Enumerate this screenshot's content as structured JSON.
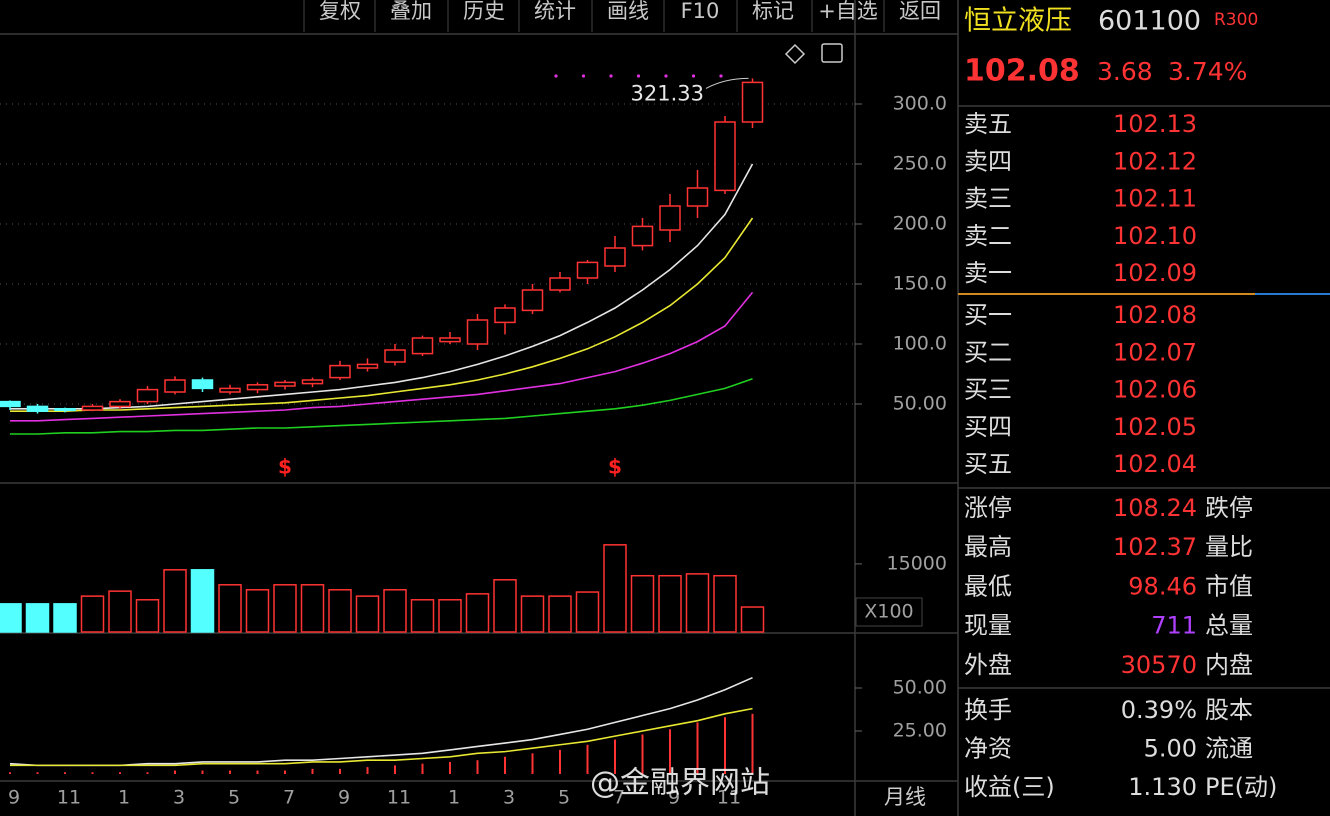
{
  "toolbar": [
    "复权",
    "叠加",
    "历史",
    "统计",
    "画线",
    "F10",
    "标记",
    "+自选",
    "返回"
  ],
  "chart_data": [
    {
      "type": "candlestick",
      "period": "月线",
      "up_color": "#ff3333",
      "down_color": "#54ffff",
      "categories": [
        "9",
        null,
        "11",
        null,
        "1",
        null,
        "3",
        null,
        "5",
        null,
        "7",
        null,
        "9",
        null,
        "11",
        null,
        "1",
        null,
        "3",
        null,
        "5",
        null,
        "7",
        null,
        "9",
        null,
        "11",
        null
      ],
      "open": [
        52,
        48,
        46,
        45,
        48,
        52,
        60,
        70,
        60,
        62,
        65,
        67,
        72,
        80,
        85,
        92,
        102,
        100,
        118,
        128,
        145,
        155,
        165,
        182,
        195,
        215,
        228,
        285
      ],
      "high": [
        53,
        50,
        47,
        50,
        54,
        65,
        73,
        72,
        66,
        68,
        70,
        72,
        86,
        88,
        100,
        107,
        110,
        125,
        133,
        150,
        160,
        170,
        190,
        205,
        225,
        245,
        290,
        321.33
      ],
      "low": [
        45,
        42,
        43,
        44,
        46,
        50,
        58,
        60,
        58,
        59,
        62,
        64,
        70,
        77,
        82,
        90,
        100,
        95,
        108,
        125,
        143,
        150,
        160,
        178,
        185,
        205,
        225,
        280
      ],
      "close": [
        48,
        44,
        45,
        48,
        52,
        62,
        70,
        63,
        63,
        66,
        68,
        70,
        82,
        83,
        95,
        105,
        105,
        120,
        130,
        145,
        155,
        168,
        180,
        198,
        215,
        230,
        285,
        318
      ],
      "series": [
        {
          "color": "#e6e6e6",
          "values": [
            46,
            46,
            46,
            46,
            47,
            48,
            50,
            52,
            54,
            56,
            58,
            60,
            62,
            65,
            68,
            72,
            77,
            83,
            90,
            98,
            107,
            118,
            130,
            145,
            162,
            182,
            208,
            250
          ]
        },
        {
          "color": "#e8e832",
          "values": [
            44,
            44,
            44,
            45,
            45,
            46,
            47,
            48,
            49,
            50,
            51,
            53,
            55,
            57,
            60,
            63,
            66,
            70,
            75,
            81,
            88,
            96,
            106,
            118,
            132,
            150,
            172,
            205
          ]
        },
        {
          "color": "#e030e0",
          "values": [
            36,
            36,
            37,
            38,
            39,
            40,
            41,
            42,
            43,
            44,
            45,
            47,
            48,
            50,
            52,
            54,
            56,
            58,
            61,
            64,
            67,
            72,
            77,
            84,
            92,
            102,
            115,
            143
          ]
        },
        {
          "color": "#20d020",
          "values": [
            25,
            25,
            26,
            26,
            27,
            27,
            28,
            28,
            29,
            30,
            30,
            31,
            32,
            33,
            34,
            35,
            36,
            37,
            38,
            40,
            42,
            44,
            46,
            49,
            53,
            58,
            63,
            71
          ]
        }
      ],
      "signals": [
        null,
        null,
        null,
        null,
        null,
        null,
        null,
        null,
        null,
        null,
        "$",
        null,
        null,
        null,
        null,
        null,
        null,
        null,
        null,
        null,
        null,
        null,
        "$",
        null,
        null,
        null,
        null,
        null
      ],
      "ylim": [
        -15,
        357.5
      ],
      "yticks": [
        {
          "value": 300,
          "label": "300.0"
        },
        {
          "value": 250,
          "label": "250.0"
        },
        {
          "value": 200,
          "label": "200.0"
        },
        {
          "value": 150,
          "label": "150.0"
        },
        {
          "value": 100,
          "label": "100.0"
        },
        {
          "value": 50,
          "label": "50.00"
        }
      ],
      "grid": true
    },
    {
      "type": "bar",
      "unit_label": "X100",
      "values": [
        6200,
        6200,
        6200,
        7900,
        9000,
        7100,
        13700,
        13700,
        10400,
        9300,
        10400,
        10400,
        9300,
        7900,
        9300,
        7100,
        7100,
        8400,
        11500,
        7900,
        7900,
        8800,
        19200,
        12400,
        12400,
        12800,
        12400,
        5500
      ],
      "ylim": [
        0,
        32600
      ],
      "yticks": [
        15000
      ]
    },
    {
      "type": "bar",
      "color": "#ff3333",
      "values": [
        1,
        1,
        1,
        1,
        1,
        1,
        2,
        2,
        2,
        2,
        2,
        3,
        3,
        4,
        5,
        6,
        7,
        8,
        10,
        12,
        14,
        17,
        20,
        23,
        26,
        30,
        33,
        35
      ],
      "series": [
        {
          "color": "#e6e6e6",
          "values": [
            6,
            5,
            5,
            5,
            5,
            6,
            6,
            7,
            7,
            7,
            8,
            8,
            9,
            10,
            11,
            12,
            14,
            16,
            18,
            20,
            23,
            26,
            30,
            34,
            38,
            43,
            49,
            56
          ]
        },
        {
          "color": "#e8e832",
          "values": [
            5,
            5,
            5,
            5,
            5,
            5,
            5,
            6,
            6,
            6,
            6,
            7,
            7,
            8,
            8,
            9,
            10,
            12,
            13,
            15,
            17,
            19,
            22,
            25,
            28,
            31,
            35,
            38
          ]
        }
      ],
      "ylim": [
        -3.5,
        81.4
      ],
      "yticks": [
        {
          "value": 50,
          "label": "50.00"
        },
        {
          "value": 25,
          "label": "25.00"
        }
      ]
    }
  ],
  "quote": {
    "name": "恒立液压",
    "code": "601100",
    "badge": "R300",
    "price": "102.08",
    "change": "3.68",
    "change_pct": "3.74%",
    "asks": [
      {
        "label": "卖五",
        "price": "102.13"
      },
      {
        "label": "卖四",
        "price": "102.12"
      },
      {
        "label": "卖三",
        "price": "102.11"
      },
      {
        "label": "卖二",
        "price": "102.10"
      },
      {
        "label": "卖一",
        "price": "102.09"
      }
    ],
    "bids": [
      {
        "label": "买一",
        "price": "102.08"
      },
      {
        "label": "买二",
        "price": "102.07"
      },
      {
        "label": "买三",
        "price": "102.06"
      },
      {
        "label": "买四",
        "price": "102.05"
      },
      {
        "label": "买五",
        "price": "102.04"
      }
    ],
    "stats": [
      {
        "label": "涨停",
        "value": "108.24",
        "label2": "跌停",
        "color": "#ff3333"
      },
      {
        "label": "最高",
        "value": "102.37",
        "label2": "量比",
        "color": "#ff3333"
      },
      {
        "label": "最低",
        "value": "98.46",
        "label2": "市值",
        "color": "#ff3333"
      },
      {
        "label": "现量",
        "value": "711",
        "label2": "总量",
        "color": "#b040ff"
      },
      {
        "label": "外盘",
        "value": "30570",
        "label2": "内盘",
        "color": "#ff3333"
      }
    ],
    "fundamentals": [
      {
        "label": "换手",
        "value": "0.39%",
        "label2": "股本"
      },
      {
        "label": "净资",
        "value": "5.00",
        "label2": "流通"
      },
      {
        "label": "收益(三)",
        "value": "1.130",
        "label2": "PE(动)"
      }
    ]
  },
  "watermark": "@金融界网站"
}
